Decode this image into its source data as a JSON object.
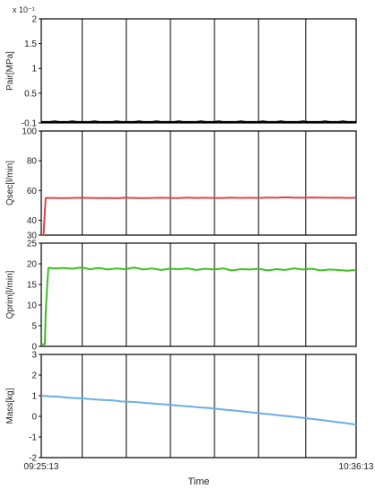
{
  "chart_data": [
    {
      "type": "line",
      "ylabel": "Pair[MPa]",
      "y_multiplier_label": "x 10⁻¹",
      "ylim": [
        -0.1,
        2
      ],
      "yticks": [
        2,
        1.5,
        1,
        0.5,
        -0.1
      ],
      "ytick_labels": [
        "2",
        "1.5",
        "1",
        "0.5",
        "-0.1"
      ],
      "grid": "vertical",
      "series": [
        {
          "color": "#000000",
          "x": [
            0,
            1,
            2,
            3,
            4,
            5,
            6,
            7,
            8,
            9,
            10,
            11,
            12,
            13,
            14,
            15,
            16,
            17,
            18,
            19,
            20,
            21,
            22,
            23,
            24,
            25,
            26,
            27,
            28,
            29,
            30,
            31,
            32,
            33,
            34,
            35,
            36,
            37,
            38,
            39,
            40,
            41,
            42,
            43,
            44,
            45,
            46,
            47,
            48,
            49,
            50,
            51,
            52,
            53,
            54,
            55,
            56,
            57,
            58,
            59,
            60,
            61,
            62,
            63,
            64,
            65,
            66,
            67,
            68,
            69,
            70,
            71
          ],
          "values": [
            -0.08,
            -0.08,
            -0.08,
            -0.07,
            -0.08,
            -0.08,
            -0.08,
            -0.07,
            -0.08,
            -0.08,
            -0.08,
            -0.08,
            -0.07,
            -0.08,
            -0.08,
            -0.08,
            -0.08,
            -0.07,
            -0.08,
            -0.08,
            -0.08,
            -0.08,
            -0.07,
            -0.08,
            -0.08,
            -0.08,
            -0.07,
            -0.08,
            -0.08,
            -0.08,
            -0.08,
            -0.07,
            -0.08,
            -0.08,
            -0.08,
            -0.08,
            -0.07,
            -0.08,
            -0.08,
            -0.08,
            -0.07,
            -0.08,
            -0.08,
            -0.08,
            -0.08,
            -0.07,
            -0.08,
            -0.08,
            -0.08,
            -0.08,
            -0.07,
            -0.08,
            -0.08,
            -0.08,
            -0.07,
            -0.08,
            -0.08,
            -0.08,
            -0.08,
            -0.07,
            -0.08,
            -0.08,
            -0.08,
            -0.08,
            -0.07,
            -0.08,
            -0.08,
            -0.08,
            -0.07,
            -0.08,
            -0.08,
            -0.08
          ]
        }
      ]
    },
    {
      "type": "line",
      "ylabel": "Qsec[l/min]",
      "ylim": [
        30,
        100
      ],
      "yticks": [
        100,
        80,
        60,
        40,
        30
      ],
      "ytick_labels": [
        "100",
        "80",
        "60",
        "40",
        "30"
      ],
      "grid": "vertical",
      "series": [
        {
          "color": "#e0464a",
          "x": [
            0,
            0.5,
            1,
            1.5,
            3,
            5,
            7,
            9,
            11,
            13,
            15,
            17,
            19,
            21,
            23,
            25,
            27,
            29,
            31,
            33,
            35,
            37,
            39,
            41,
            43,
            45,
            47,
            49,
            51,
            53,
            55,
            57,
            59,
            61,
            63,
            65,
            67,
            69,
            71
          ],
          "values": [
            30,
            30,
            55,
            55,
            55,
            54.8,
            55,
            55.1,
            55,
            54.9,
            55,
            54.8,
            55.1,
            55,
            54.8,
            55,
            55.1,
            55,
            54.9,
            55.2,
            55,
            55.1,
            55,
            55,
            55.2,
            55,
            55.1,
            55,
            55.3,
            55.1,
            55.4,
            55.2,
            55.1,
            55.3,
            55.2,
            55.1,
            55.2,
            55,
            55.1
          ]
        }
      ]
    },
    {
      "type": "line",
      "ylabel": "Qprim[l/min]",
      "ylim": [
        0,
        25
      ],
      "yticks": [
        25,
        20,
        15,
        10,
        5,
        0
      ],
      "ytick_labels": [
        "25",
        "20",
        "15",
        "10",
        "5",
        "0"
      ],
      "grid": "vertical",
      "series": [
        {
          "color": "#3cbf22",
          "x": [
            0,
            0.8,
            1,
            1.3,
            1.6,
            2,
            3,
            5,
            7,
            9,
            11,
            13,
            15,
            17,
            19,
            21,
            23,
            25,
            27,
            29,
            31,
            33,
            35,
            37,
            39,
            41,
            43,
            45,
            47,
            49,
            51,
            53,
            55,
            57,
            59,
            61,
            63,
            65,
            67,
            69,
            71
          ],
          "values": [
            0.5,
            0.5,
            8,
            14,
            19,
            19,
            18.9,
            19,
            18.8,
            19.1,
            18.7,
            19,
            18.6,
            18.9,
            18.7,
            19.1,
            18.6,
            18.9,
            18.5,
            18.8,
            18.7,
            18.9,
            18.5,
            18.8,
            18.6,
            18.9,
            18.4,
            18.7,
            18.6,
            18.8,
            18.4,
            18.7,
            18.5,
            18.9,
            18.6,
            18.8,
            18.4,
            18.6,
            18.5,
            18.3,
            18.5
          ]
        }
      ]
    },
    {
      "type": "line",
      "ylabel": "Mass[kg]",
      "xlabel": "Time",
      "ylim": [
        -2,
        3
      ],
      "yticks": [
        3,
        2,
        1,
        0,
        -1,
        -2
      ],
      "ytick_labels": [
        "3",
        "2",
        "1",
        "0",
        "-1",
        "-2"
      ],
      "xlim": [
        "09:25:13",
        "10:36:13"
      ],
      "xtick_labels": [
        "09:25:13",
        "10:36:13"
      ],
      "grid": "vertical",
      "series": [
        {
          "color": "#6aaee6",
          "x": [
            0,
            2,
            4,
            6,
            8,
            10,
            12,
            14,
            16,
            18,
            20,
            22,
            24,
            26,
            28,
            30,
            32,
            34,
            36,
            38,
            40,
            42,
            44,
            46,
            48,
            50,
            52,
            54,
            56,
            58,
            60,
            62,
            64,
            66,
            68,
            70,
            71
          ],
          "values": [
            1.0,
            0.97,
            0.95,
            0.9,
            0.88,
            0.86,
            0.82,
            0.79,
            0.78,
            0.72,
            0.71,
            0.68,
            0.64,
            0.61,
            0.58,
            0.54,
            0.5,
            0.47,
            0.43,
            0.4,
            0.35,
            0.31,
            0.27,
            0.22,
            0.18,
            0.13,
            0.09,
            0.04,
            0.0,
            -0.05,
            -0.1,
            -0.15,
            -0.2,
            -0.26,
            -0.31,
            -0.37,
            -0.4
          ]
        }
      ]
    }
  ]
}
